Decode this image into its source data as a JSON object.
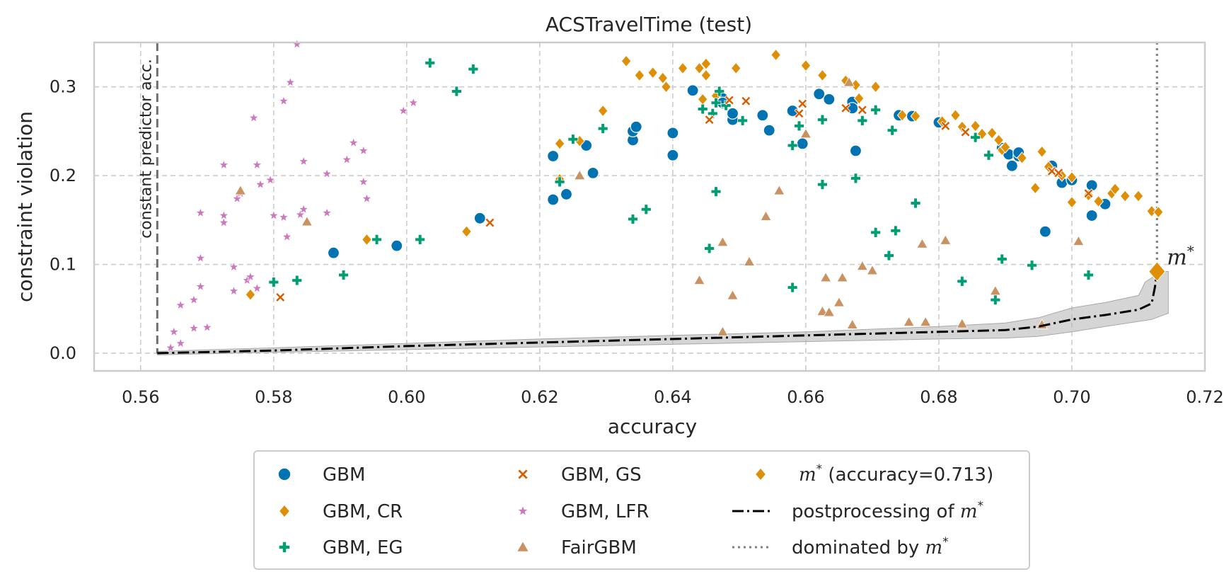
{
  "chart_data": {
    "type": "scatter",
    "title": "ACSTravelTime (test)",
    "xlabel": "accuracy",
    "ylabel": "constraint violation",
    "xlim": [
      0.553,
      0.72
    ],
    "ylim": [
      -0.02,
      0.35
    ],
    "xticks": [
      "0.56",
      "0.58",
      "0.60",
      "0.62",
      "0.64",
      "0.66",
      "0.68",
      "0.70",
      "0.72"
    ],
    "xtick_values": [
      0.56,
      0.58,
      0.6,
      0.62,
      0.64,
      0.66,
      0.68,
      0.7,
      0.72
    ],
    "yticks": [
      "0.0",
      "0.1",
      "0.2",
      "0.3"
    ],
    "ytick_values": [
      0.0,
      0.1,
      0.2,
      0.3
    ],
    "grid": true,
    "legend_position": "bottom-center",
    "constant_predictor": {
      "x": 0.5625,
      "label": "constant predictor acc."
    },
    "m_star": {
      "x": 0.7128,
      "y": 0.092,
      "label": "m*"
    },
    "series": [
      {
        "name": "GBM",
        "marker": "circle",
        "color": "#0173b2",
        "points": [
          [
            0.589,
            0.113
          ],
          [
            0.5985,
            0.121
          ],
          [
            0.611,
            0.152
          ],
          [
            0.622,
            0.222
          ],
          [
            0.622,
            0.173
          ],
          [
            0.624,
            0.179
          ],
          [
            0.627,
            0.234
          ],
          [
            0.628,
            0.203
          ],
          [
            0.634,
            0.24
          ],
          [
            0.634,
            0.25
          ],
          [
            0.6345,
            0.255
          ],
          [
            0.64,
            0.248
          ],
          [
            0.64,
            0.223
          ],
          [
            0.643,
            0.296
          ],
          [
            0.6475,
            0.287
          ],
          [
            0.6475,
            0.282
          ],
          [
            0.649,
            0.263
          ],
          [
            0.649,
            0.27
          ],
          [
            0.6535,
            0.268
          ],
          [
            0.6545,
            0.251
          ],
          [
            0.658,
            0.273
          ],
          [
            0.6595,
            0.236
          ],
          [
            0.662,
            0.292
          ],
          [
            0.6635,
            0.286
          ],
          [
            0.667,
            0.283
          ],
          [
            0.667,
            0.276
          ],
          [
            0.6675,
            0.228
          ],
          [
            0.674,
            0.268
          ],
          [
            0.676,
            0.267
          ],
          [
            0.68,
            0.26
          ],
          [
            0.6895,
            0.231
          ],
          [
            0.6905,
            0.224
          ],
          [
            0.691,
            0.211
          ],
          [
            0.692,
            0.222
          ],
          [
            0.692,
            0.226
          ],
          [
            0.696,
            0.137
          ],
          [
            0.697,
            0.211
          ],
          [
            0.6985,
            0.192
          ],
          [
            0.7,
            0.195
          ],
          [
            0.703,
            0.189
          ],
          [
            0.703,
            0.155
          ],
          [
            0.705,
            0.168
          ]
        ]
      },
      {
        "name": "GBM, CR",
        "marker": "diamond",
        "color": "#de8f05",
        "points": [
          [
            0.5765,
            0.066
          ],
          [
            0.594,
            0.128
          ],
          [
            0.609,
            0.137
          ],
          [
            0.623,
            0.236
          ],
          [
            0.623,
            0.196
          ],
          [
            0.626,
            0.239
          ],
          [
            0.6295,
            0.273
          ],
          [
            0.633,
            0.329
          ],
          [
            0.635,
            0.313
          ],
          [
            0.637,
            0.316
          ],
          [
            0.6385,
            0.31
          ],
          [
            0.639,
            0.3
          ],
          [
            0.6415,
            0.321
          ],
          [
            0.644,
            0.321
          ],
          [
            0.645,
            0.326
          ],
          [
            0.645,
            0.313
          ],
          [
            0.6445,
            0.286
          ],
          [
            0.6465,
            0.29
          ],
          [
            0.6495,
            0.321
          ],
          [
            0.6555,
            0.336
          ],
          [
            0.66,
            0.324
          ],
          [
            0.6625,
            0.313
          ],
          [
            0.666,
            0.307
          ],
          [
            0.6675,
            0.302
          ],
          [
            0.6705,
            0.3
          ],
          [
            0.668,
            0.287
          ],
          [
            0.6745,
            0.268
          ],
          [
            0.6765,
            0.267
          ],
          [
            0.6805,
            0.261
          ],
          [
            0.6825,
            0.268
          ],
          [
            0.6835,
            0.255
          ],
          [
            0.6855,
            0.256
          ],
          [
            0.6865,
            0.247
          ],
          [
            0.688,
            0.248
          ],
          [
            0.689,
            0.24
          ],
          [
            0.6895,
            0.229
          ],
          [
            0.69,
            0.232
          ],
          [
            0.6925,
            0.22
          ],
          [
            0.6955,
            0.227
          ],
          [
            0.6965,
            0.21
          ],
          [
            0.6945,
            0.186
          ],
          [
            0.6985,
            0.2
          ],
          [
            0.7,
            0.198
          ],
          [
            0.7,
            0.17
          ],
          [
            0.7025,
            0.178
          ],
          [
            0.704,
            0.171
          ],
          [
            0.706,
            0.18
          ],
          [
            0.7065,
            0.185
          ],
          [
            0.708,
            0.177
          ],
          [
            0.71,
            0.177
          ],
          [
            0.712,
            0.16
          ],
          [
            0.713,
            0.159
          ]
        ]
      },
      {
        "name": "GBM, EG",
        "marker": "plus",
        "color": "#029e73",
        "points": [
          [
            0.58,
            0.08
          ],
          [
            0.5835,
            0.082
          ],
          [
            0.5905,
            0.088
          ],
          [
            0.5955,
            0.128
          ],
          [
            0.602,
            0.128
          ],
          [
            0.6035,
            0.327
          ],
          [
            0.6075,
            0.295
          ],
          [
            0.61,
            0.32
          ],
          [
            0.623,
            0.193
          ],
          [
            0.625,
            0.241
          ],
          [
            0.6295,
            0.253
          ],
          [
            0.634,
            0.151
          ],
          [
            0.636,
            0.162
          ],
          [
            0.6445,
            0.275
          ],
          [
            0.6455,
            0.118
          ],
          [
            0.646,
            0.27
          ],
          [
            0.6465,
            0.282
          ],
          [
            0.647,
            0.295
          ],
          [
            0.6465,
            0.182
          ],
          [
            0.648,
            0.279
          ],
          [
            0.6505,
            0.262
          ],
          [
            0.658,
            0.074
          ],
          [
            0.658,
            0.234
          ],
          [
            0.659,
            0.256
          ],
          [
            0.6625,
            0.263
          ],
          [
            0.6625,
            0.19
          ],
          [
            0.6675,
            0.197
          ],
          [
            0.6685,
            0.262
          ],
          [
            0.6705,
            0.274
          ],
          [
            0.6705,
            0.136
          ],
          [
            0.6725,
            0.11
          ],
          [
            0.673,
            0.251
          ],
          [
            0.6735,
            0.138
          ],
          [
            0.6765,
            0.169
          ],
          [
            0.6835,
            0.081
          ],
          [
            0.6855,
            0.243
          ],
          [
            0.6875,
            0.223
          ],
          [
            0.6885,
            0.06
          ],
          [
            0.6895,
            0.106
          ],
          [
            0.694,
            0.099
          ],
          [
            0.7025,
            0.088
          ]
        ]
      },
      {
        "name": "GBM, GS",
        "marker": "x",
        "color": "#d55e00",
        "points": [
          [
            0.581,
            0.063
          ],
          [
            0.6125,
            0.147
          ],
          [
            0.6455,
            0.263
          ],
          [
            0.6485,
            0.285
          ],
          [
            0.651,
            0.284
          ],
          [
            0.6595,
            0.281
          ],
          [
            0.659,
            0.27
          ],
          [
            0.666,
            0.276
          ],
          [
            0.6685,
            0.274
          ],
          [
            0.681,
            0.256
          ],
          [
            0.684,
            0.249
          ],
          [
            0.697,
            0.205
          ],
          [
            0.698,
            0.203
          ],
          [
            0.7025,
            0.18
          ]
        ]
      },
      {
        "name": "GBM, LFR",
        "marker": "star",
        "color": "#cc78bc",
        "points": [
          [
            0.5645,
            0.006
          ],
          [
            0.565,
            0.024
          ],
          [
            0.566,
            0.054
          ],
          [
            0.566,
            0.011
          ],
          [
            0.568,
            0.06
          ],
          [
            0.568,
            0.028
          ],
          [
            0.569,
            0.075
          ],
          [
            0.569,
            0.107
          ],
          [
            0.569,
            0.158
          ],
          [
            0.57,
            0.029
          ],
          [
            0.5725,
            0.155
          ],
          [
            0.5725,
            0.147
          ],
          [
            0.5725,
            0.212
          ],
          [
            0.574,
            0.07
          ],
          [
            0.574,
            0.097
          ],
          [
            0.5745,
            0.174
          ],
          [
            0.575,
            0.18
          ],
          [
            0.576,
            0.082
          ],
          [
            0.5765,
            0.086
          ],
          [
            0.577,
            0.265
          ],
          [
            0.5775,
            0.073
          ],
          [
            0.5775,
            0.212
          ],
          [
            0.578,
            0.19
          ],
          [
            0.5795,
            0.195
          ],
          [
            0.58,
            0.155
          ],
          [
            0.5815,
            0.153
          ],
          [
            0.5815,
            0.284
          ],
          [
            0.582,
            0.131
          ],
          [
            0.5825,
            0.305
          ],
          [
            0.5835,
            0.348
          ],
          [
            0.584,
            0.156
          ],
          [
            0.5845,
            0.162
          ],
          [
            0.5845,
            0.216
          ],
          [
            0.588,
            0.158
          ],
          [
            0.588,
            0.202
          ],
          [
            0.591,
            0.218
          ],
          [
            0.592,
            0.237
          ],
          [
            0.5935,
            0.228
          ],
          [
            0.5935,
            0.193
          ],
          [
            0.594,
            0.174
          ],
          [
            0.5995,
            0.273
          ],
          [
            0.601,
            0.282
          ]
        ]
      },
      {
        "name": "FairGBM",
        "marker": "triangle",
        "color": "#ca9161",
        "points": [
          [
            0.575,
            0.183
          ],
          [
            0.585,
            0.148
          ],
          [
            0.626,
            0.2
          ],
          [
            0.644,
            0.082
          ],
          [
            0.6475,
            0.125
          ],
          [
            0.6475,
            0.024
          ],
          [
            0.649,
            0.065
          ],
          [
            0.6515,
            0.103
          ],
          [
            0.654,
            0.154
          ],
          [
            0.656,
            0.183
          ],
          [
            0.66,
            0.247
          ],
          [
            0.6625,
            0.047
          ],
          [
            0.663,
            0.085
          ],
          [
            0.6635,
            0.046
          ],
          [
            0.665,
            0.057
          ],
          [
            0.6655,
            0.085
          ],
          [
            0.6665,
            0.305
          ],
          [
            0.667,
            0.032
          ],
          [
            0.6685,
            0.098
          ],
          [
            0.67,
            0.093
          ],
          [
            0.6755,
            0.035
          ],
          [
            0.6775,
            0.123
          ],
          [
            0.678,
            0.035
          ],
          [
            0.681,
            0.127
          ],
          [
            0.6835,
            0.033
          ],
          [
            0.6885,
            0.07
          ],
          [
            0.6955,
            0.032
          ],
          [
            0.701,
            0.126
          ]
        ]
      }
    ],
    "postprocessing_line": [
      [
        0.5625,
        0.0
      ],
      [
        0.58,
        0.003
      ],
      [
        0.6,
        0.008
      ],
      [
        0.62,
        0.012
      ],
      [
        0.64,
        0.016
      ],
      [
        0.66,
        0.02
      ],
      [
        0.68,
        0.024
      ],
      [
        0.69,
        0.026
      ],
      [
        0.695,
        0.03
      ],
      [
        0.7,
        0.038
      ],
      [
        0.705,
        0.043
      ],
      [
        0.71,
        0.049
      ],
      [
        0.712,
        0.056
      ],
      [
        0.7125,
        0.075
      ],
      [
        0.7128,
        0.092
      ]
    ],
    "band_upper": [
      [
        0.5625,
        0.002
      ],
      [
        0.58,
        0.006
      ],
      [
        0.6,
        0.011
      ],
      [
        0.62,
        0.016
      ],
      [
        0.64,
        0.02
      ],
      [
        0.66,
        0.024
      ],
      [
        0.68,
        0.03
      ],
      [
        0.69,
        0.034
      ],
      [
        0.695,
        0.04
      ],
      [
        0.7,
        0.051
      ],
      [
        0.705,
        0.057
      ],
      [
        0.71,
        0.065
      ],
      [
        0.7105,
        0.072
      ],
      [
        0.711,
        0.08
      ],
      [
        0.7135,
        0.092
      ]
    ],
    "band_lower": [
      [
        0.7145,
        0.092
      ],
      [
        0.7145,
        0.045
      ],
      [
        0.712,
        0.038
      ],
      [
        0.705,
        0.03
      ],
      [
        0.7,
        0.024
      ],
      [
        0.695,
        0.019
      ],
      [
        0.69,
        0.017
      ],
      [
        0.68,
        0.016
      ],
      [
        0.66,
        0.013
      ],
      [
        0.64,
        0.01
      ],
      [
        0.62,
        0.007
      ],
      [
        0.6,
        0.004
      ],
      [
        0.58,
        0.001
      ],
      [
        0.5625,
        -0.002
      ]
    ],
    "legend": [
      {
        "label": "GBM",
        "marker": "circle",
        "color": "#0173b2"
      },
      {
        "label": "GBM, GS",
        "marker": "x",
        "color": "#d55e00"
      },
      {
        "label": "(accuracy=0.713)",
        "prefix": "m*",
        "marker": "diamond",
        "color": "#de8f05"
      },
      {
        "label": "GBM, CR",
        "marker": "diamond",
        "color": "#de8f05"
      },
      {
        "label": "GBM, LFR",
        "marker": "star",
        "color": "#cc78bc"
      },
      {
        "label": "postprocessing of",
        "suffix": "m*",
        "marker": "dashdot",
        "color": "#000000"
      },
      {
        "label": "GBM, EG",
        "marker": "plus",
        "color": "#029e73"
      },
      {
        "label": "FairGBM",
        "marker": "triangle",
        "color": "#ca9161"
      },
      {
        "label": "dominated by",
        "suffix": "m*",
        "marker": "dotted",
        "color": "#7f7f7f"
      }
    ]
  }
}
